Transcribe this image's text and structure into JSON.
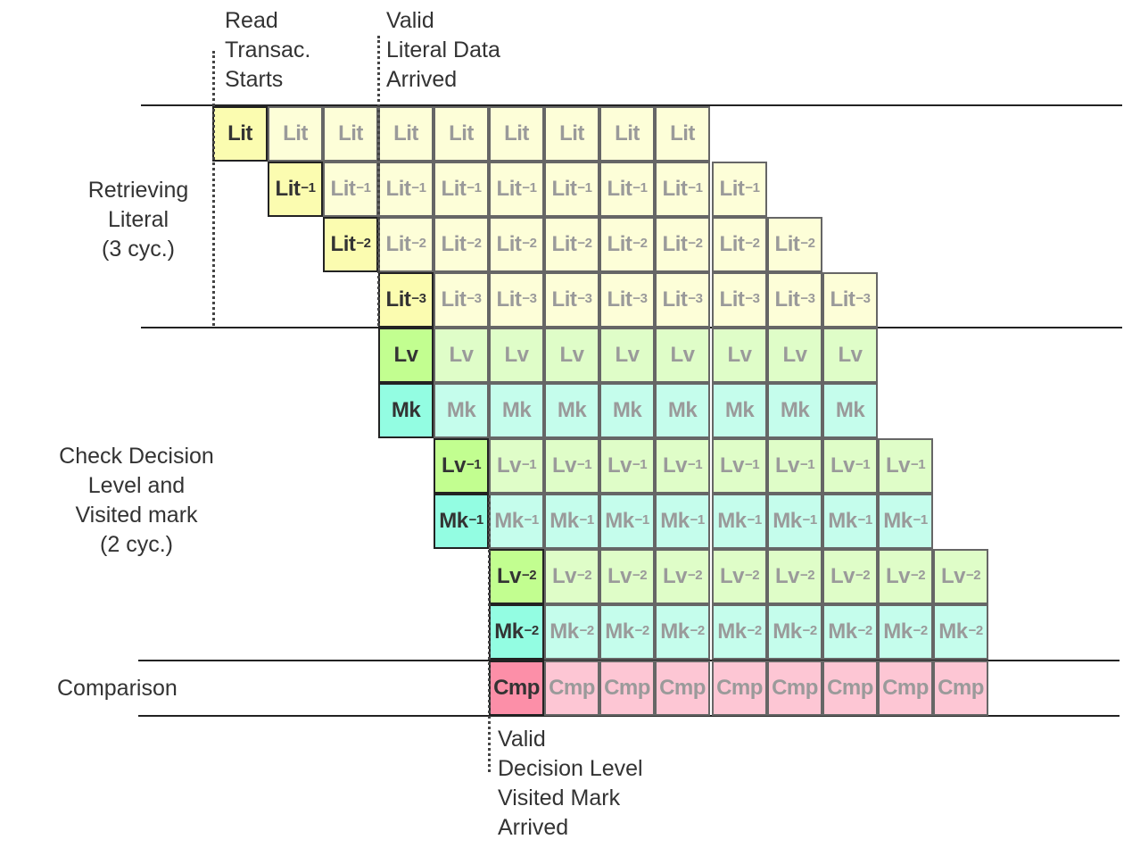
{
  "annotations": {
    "read_start": [
      "Read",
      "Transac.",
      "Starts"
    ],
    "literal_valid": [
      "Valid",
      "Literal Data",
      "Arrived"
    ],
    "decision_valid": [
      "Valid",
      "Decision Level",
      "Visited Mark",
      "Arrived"
    ]
  },
  "stages": {
    "retrieving": [
      "Retrieving",
      "Literal",
      "(3 cyc.)"
    ],
    "check": [
      "Check Decision",
      "Level and",
      "Visited mark",
      "(2 cyc.)"
    ],
    "comparison": [
      "Comparison"
    ]
  },
  "colors": {
    "lit_active": "#fbfcb0",
    "lit_faded": "#fdfed8",
    "lv_active": "#c2fe90",
    "lv_faded": "#dffdc8",
    "mk_active": "#93fde2",
    "mk_faded": "#c5fdec",
    "cmp_active": "#fc8fa8",
    "cmp_faded": "#fdc6d4"
  },
  "rows": [
    {
      "base": "Lit",
      "sup": "",
      "kind": "lit",
      "start": 0,
      "count": 9
    },
    {
      "base": "Lit",
      "sup": "−1",
      "kind": "lit",
      "start": 1,
      "count": 9
    },
    {
      "base": "Lit",
      "sup": "−2",
      "kind": "lit",
      "start": 2,
      "count": 9
    },
    {
      "base": "Lit",
      "sup": "−3",
      "kind": "lit",
      "start": 3,
      "count": 9
    },
    {
      "base": "Lv",
      "sup": "",
      "kind": "lv",
      "start": 3,
      "count": 9
    },
    {
      "base": "Mk",
      "sup": "",
      "kind": "mk",
      "start": 3,
      "count": 9
    },
    {
      "base": "Lv",
      "sup": "−1",
      "kind": "lv",
      "start": 4,
      "count": 9
    },
    {
      "base": "Mk",
      "sup": "−1",
      "kind": "mk",
      "start": 4,
      "count": 9
    },
    {
      "base": "Lv",
      "sup": "−2",
      "kind": "lv",
      "start": 5,
      "count": 9
    },
    {
      "base": "Mk",
      "sup": "−2",
      "kind": "mk",
      "start": 5,
      "count": 9
    },
    {
      "base": "Cmp",
      "sup": "",
      "kind": "cmp",
      "start": 5,
      "count": 9
    }
  ]
}
